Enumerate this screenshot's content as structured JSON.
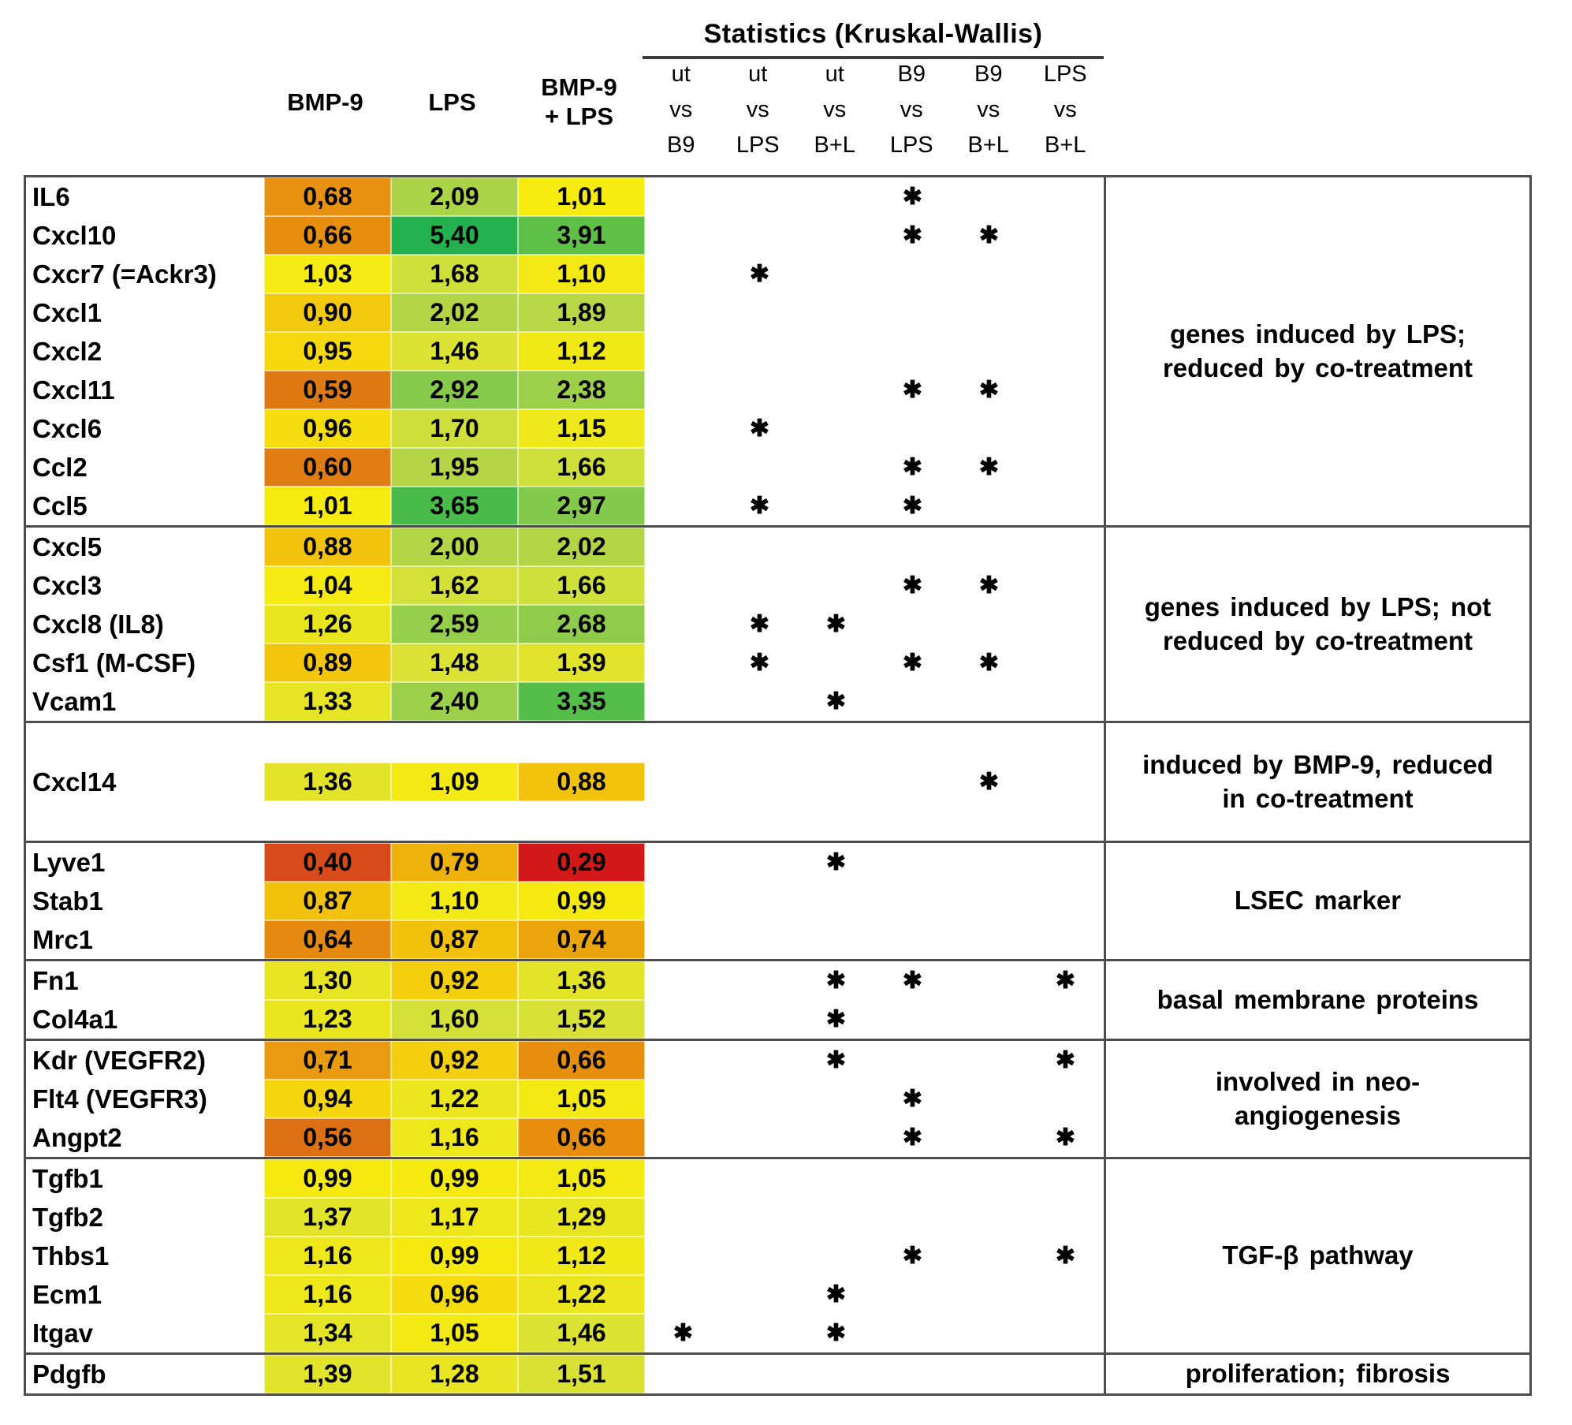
{
  "header": {
    "stats_title": "Statistics (Kruskal-Wallis)",
    "value_columns": [
      "BMP-9",
      "LPS",
      "BMP-9\n+ LPS"
    ],
    "stat_columns": [
      "ut\nvs\nB9",
      "ut\nvs\nLPS",
      "ut\nvs\nB+L",
      "B9\nvs\nLPS",
      "B9\nvs\nB+L",
      "LPS\nvs\nB+L"
    ],
    "star_symbol": "✱"
  },
  "sections": [
    {
      "annotation": "genes induced by LPS;\nreduced by co-treatment",
      "tall": false,
      "rows": [
        {
          "gene": "IL6",
          "values": [
            "0,68",
            "2,09",
            "1,01"
          ],
          "colors": [
            "#E89110",
            "#ABD348",
            "#F7EC10"
          ],
          "stars": [
            0,
            0,
            0,
            1,
            0,
            0
          ]
        },
        {
          "gene": "Cxcl10",
          "values": [
            "0,66",
            "5,40",
            "3,91"
          ],
          "colors": [
            "#E88E0E",
            "#22B14D",
            "#5FC047"
          ],
          "stars": [
            0,
            0,
            0,
            1,
            1,
            0
          ]
        },
        {
          "gene": "Cxcr7 (=Ackr3)",
          "values": [
            "1,03",
            "1,68",
            "1,10"
          ],
          "colors": [
            "#F6EB12",
            "#CFDF3C",
            "#F2E915"
          ],
          "stars": [
            0,
            1,
            0,
            0,
            0,
            0
          ]
        },
        {
          "gene": "Cxcl1",
          "values": [
            "0,90",
            "2,02",
            "1,89"
          ],
          "colors": [
            "#F3C90D",
            "#B1D545",
            "#B7D747"
          ],
          "stars": [
            0,
            0,
            0,
            0,
            0,
            0
          ]
        },
        {
          "gene": "Cxcl2",
          "values": [
            "0,95",
            "1,46",
            "1,12"
          ],
          "colors": [
            "#F5D90E",
            "#DDE332",
            "#F0E817"
          ],
          "stars": [
            0,
            0,
            0,
            0,
            0,
            0
          ]
        },
        {
          "gene": "Cxcl11",
          "values": [
            "0,59",
            "2,92",
            "2,38"
          ],
          "colors": [
            "#DF7A12",
            "#86CA4B",
            "#9DD04A"
          ],
          "stars": [
            0,
            0,
            0,
            1,
            1,
            0
          ]
        },
        {
          "gene": "Cxcl6",
          "values": [
            "0,96",
            "1,70",
            "1,15"
          ],
          "colors": [
            "#F5DC0E",
            "#CEDF3B",
            "#EFE81A"
          ],
          "stars": [
            0,
            1,
            0,
            0,
            0,
            0
          ]
        },
        {
          "gene": "Ccl2",
          "values": [
            "0,60",
            "1,95",
            "1,66"
          ],
          "colors": [
            "#E07C12",
            "#B4D646",
            "#D0E03A"
          ],
          "stars": [
            0,
            0,
            0,
            1,
            1,
            0
          ]
        },
        {
          "gene": "Ccl5",
          "values": [
            "1,01",
            "3,65",
            "2,97"
          ],
          "colors": [
            "#F7EC10",
            "#48BB4A",
            "#83C94B"
          ],
          "stars": [
            0,
            1,
            0,
            1,
            0,
            0
          ]
        }
      ]
    },
    {
      "annotation": "genes induced by LPS; not\nreduced by co-treatment",
      "tall": false,
      "rows": [
        {
          "gene": "Cxcl5",
          "values": [
            "0,88",
            "2,00",
            "2,02"
          ],
          "colors": [
            "#F2C30C",
            "#B2D546",
            "#B1D545"
          ],
          "stars": [
            0,
            0,
            0,
            0,
            0,
            0
          ]
        },
        {
          "gene": "Cxcl3",
          "values": [
            "1,04",
            "1,62",
            "1,66"
          ],
          "colors": [
            "#F5EA12",
            "#D2E038",
            "#D0E03A"
          ],
          "stars": [
            0,
            0,
            0,
            1,
            1,
            0
          ]
        },
        {
          "gene": "Cxcl8 (IL8)",
          "values": [
            "1,26",
            "2,59",
            "2,68"
          ],
          "colors": [
            "#E9E620",
            "#94CE4B",
            "#90CC4B"
          ],
          "stars": [
            0,
            1,
            1,
            0,
            0,
            0
          ]
        },
        {
          "gene": "Csf1 (M-CSF)",
          "values": [
            "0,89",
            "1,48",
            "1,39"
          ],
          "colors": [
            "#F2C60C",
            "#DCE233",
            "#E2E42C"
          ],
          "stars": [
            0,
            1,
            0,
            1,
            1,
            0
          ]
        },
        {
          "gene": "Vcam1",
          "values": [
            "1,33",
            "2,40",
            "3,35"
          ],
          "colors": [
            "#E5E526",
            "#9CD04A",
            "#55BD49"
          ],
          "stars": [
            0,
            0,
            1,
            0,
            0,
            0
          ]
        }
      ]
    },
    {
      "annotation": "induced by BMP-9, reduced\nin co-treatment",
      "tall": true,
      "rows": [
        {
          "gene": "Cxcl14",
          "values": [
            "1,36",
            "1,09",
            "0,88"
          ],
          "colors": [
            "#E3E429",
            "#F2E915",
            "#F2C30C"
          ],
          "stars": [
            0,
            0,
            0,
            0,
            1,
            0
          ]
        }
      ]
    },
    {
      "annotation": "LSEC marker",
      "tall": false,
      "rows": [
        {
          "gene": "Lyve1",
          "values": [
            "0,40",
            "0,79",
            "0,29"
          ],
          "colors": [
            "#D94A1B",
            "#EFB10C",
            "#D21818"
          ],
          "stars": [
            0,
            0,
            1,
            0,
            0,
            0
          ]
        },
        {
          "gene": "Stab1",
          "values": [
            "0,87",
            "1,10",
            "0,99"
          ],
          "colors": [
            "#F1C10C",
            "#F2E915",
            "#F6E90F"
          ],
          "stars": [
            0,
            0,
            0,
            0,
            0,
            0
          ]
        },
        {
          "gene": "Mrc1",
          "values": [
            "0,64",
            "0,87",
            "0,74"
          ],
          "colors": [
            "#E58A0F",
            "#F1C10C",
            "#ECA40D"
          ],
          "stars": [
            0,
            0,
            0,
            0,
            0,
            0
          ]
        }
      ]
    },
    {
      "annotation": "basal membrane proteins",
      "tall": false,
      "rows": [
        {
          "gene": "Fn1",
          "values": [
            "1,30",
            "0,92",
            "1,36"
          ],
          "colors": [
            "#E7E523",
            "#F4CF0D",
            "#E3E429"
          ],
          "stars": [
            0,
            0,
            1,
            1,
            0,
            1
          ]
        },
        {
          "gene": "Col4a1",
          "values": [
            "1,23",
            "1,60",
            "1,52"
          ],
          "colors": [
            "#EAE61E",
            "#D3E037",
            "#D8E135"
          ],
          "stars": [
            0,
            0,
            1,
            0,
            0,
            0
          ]
        }
      ]
    },
    {
      "annotation": "involved in neo-\nangiogenesis",
      "tall": false,
      "rows": [
        {
          "gene": "Kdr (VEGFR2)",
          "values": [
            "0,71",
            "0,92",
            "0,66"
          ],
          "colors": [
            "#EA9A0E",
            "#F4CF0D",
            "#E88E0E"
          ],
          "stars": [
            0,
            0,
            1,
            0,
            0,
            1
          ]
        },
        {
          "gene": "Flt4 (VEGFR3)",
          "values": [
            "0,94",
            "1,22",
            "1,05"
          ],
          "colors": [
            "#F5D60E",
            "#EBE61D",
            "#F4EA13"
          ],
          "stars": [
            0,
            0,
            0,
            1,
            0,
            0
          ]
        },
        {
          "gene": "Angpt2",
          "values": [
            "0,56",
            "1,16",
            "0,66"
          ],
          "colors": [
            "#DC7013",
            "#EEE81A",
            "#E88E0E"
          ],
          "stars": [
            0,
            0,
            0,
            1,
            0,
            1
          ]
        }
      ]
    },
    {
      "annotation": "TGF-β pathway",
      "tall": false,
      "rows": [
        {
          "gene": "Tgfb1",
          "values": [
            "0,99",
            "0,99",
            "1,05"
          ],
          "colors": [
            "#F6E90F",
            "#F6E90F",
            "#F4EA13"
          ],
          "stars": [
            0,
            0,
            0,
            0,
            0,
            0
          ]
        },
        {
          "gene": "Tgfb2",
          "values": [
            "1,37",
            "1,17",
            "1,29"
          ],
          "colors": [
            "#E2E42A",
            "#EEE81B",
            "#E8E621"
          ],
          "stars": [
            0,
            0,
            0,
            0,
            0,
            0
          ]
        },
        {
          "gene": "Thbs1",
          "values": [
            "1,16",
            "0,99",
            "1,12"
          ],
          "colors": [
            "#EEE81A",
            "#F6E90F",
            "#F0E817"
          ],
          "stars": [
            0,
            0,
            0,
            1,
            0,
            1
          ]
        },
        {
          "gene": "Ecm1",
          "values": [
            "1,16",
            "0,96",
            "1,22"
          ],
          "colors": [
            "#EEE81A",
            "#F5DC0E",
            "#EBE61D"
          ],
          "stars": [
            0,
            0,
            1,
            0,
            0,
            0
          ]
        },
        {
          "gene": "Itgav",
          "values": [
            "1,34",
            "1,05",
            "1,46"
          ],
          "colors": [
            "#E4E527",
            "#F4EA13",
            "#DDE332"
          ],
          "stars": [
            1,
            0,
            1,
            0,
            0,
            0
          ]
        }
      ]
    },
    {
      "annotation": "proliferation;  fibrosis",
      "tall": false,
      "rows": [
        {
          "gene": "Pdgfb",
          "values": [
            "1,39",
            "1,28",
            "1,51"
          ],
          "colors": [
            "#E2E42C",
            "#E8E622",
            "#D9E134"
          ],
          "stars": [
            0,
            0,
            0,
            0,
            0,
            0
          ]
        }
      ]
    }
  ],
  "chart_data": {
    "type": "heatmap",
    "title": "Statistics (Kruskal-Wallis)",
    "columns": [
      "BMP-9",
      "LPS",
      "BMP-9 + LPS"
    ],
    "rows": [
      "IL6",
      "Cxcl10",
      "Cxcr7 (=Ackr3)",
      "Cxcl1",
      "Cxcl2",
      "Cxcl11",
      "Cxcl6",
      "Ccl2",
      "Ccl5",
      "Cxcl5",
      "Cxcl3",
      "Cxcl8 (IL8)",
      "Csf1 (M-CSF)",
      "Vcam1",
      "Cxcl14",
      "Lyve1",
      "Stab1",
      "Mrc1",
      "Fn1",
      "Col4a1",
      "Kdr (VEGFR2)",
      "Flt4 (VEGFR3)",
      "Angpt2",
      "Tgfb1",
      "Tgfb2",
      "Thbs1",
      "Ecm1",
      "Itgav",
      "Pdgfb"
    ],
    "values": [
      [
        0.68,
        2.09,
        1.01
      ],
      [
        0.66,
        5.4,
        3.91
      ],
      [
        1.03,
        1.68,
        1.1
      ],
      [
        0.9,
        2.02,
        1.89
      ],
      [
        0.95,
        1.46,
        1.12
      ],
      [
        0.59,
        2.92,
        2.38
      ],
      [
        0.96,
        1.7,
        1.15
      ],
      [
        0.6,
        1.95,
        1.66
      ],
      [
        1.01,
        3.65,
        2.97
      ],
      [
        0.88,
        2.0,
        2.02
      ],
      [
        1.04,
        1.62,
        1.66
      ],
      [
        1.26,
        2.59,
        2.68
      ],
      [
        0.89,
        1.48,
        1.39
      ],
      [
        1.33,
        2.4,
        3.35
      ],
      [
        1.36,
        1.09,
        0.88
      ],
      [
        0.4,
        0.79,
        0.29
      ],
      [
        0.87,
        1.1,
        0.99
      ],
      [
        0.64,
        0.87,
        0.74
      ],
      [
        1.3,
        0.92,
        1.36
      ],
      [
        1.23,
        1.6,
        1.52
      ],
      [
        0.71,
        0.92,
        0.66
      ],
      [
        0.94,
        1.22,
        1.05
      ],
      [
        0.56,
        1.16,
        0.66
      ],
      [
        0.99,
        0.99,
        1.05
      ],
      [
        1.37,
        1.17,
        1.29
      ],
      [
        1.16,
        0.99,
        1.12
      ],
      [
        1.16,
        0.96,
        1.22
      ],
      [
        1.34,
        1.05,
        1.46
      ],
      [
        1.39,
        1.28,
        1.51
      ]
    ],
    "significance_columns": [
      "ut vs B9",
      "ut vs LPS",
      "ut vs B+L",
      "B9 vs LPS",
      "B9 vs B+L",
      "LPS vs B+L"
    ],
    "significance": [
      [
        0,
        0,
        0,
        1,
        0,
        0
      ],
      [
        0,
        0,
        0,
        1,
        1,
        0
      ],
      [
        0,
        1,
        0,
        0,
        0,
        0
      ],
      [
        0,
        0,
        0,
        0,
        0,
        0
      ],
      [
        0,
        0,
        0,
        0,
        0,
        0
      ],
      [
        0,
        0,
        0,
        1,
        1,
        0
      ],
      [
        0,
        1,
        0,
        0,
        0,
        0
      ],
      [
        0,
        0,
        0,
        1,
        1,
        0
      ],
      [
        0,
        1,
        0,
        1,
        0,
        0
      ],
      [
        0,
        0,
        0,
        0,
        0,
        0
      ],
      [
        0,
        0,
        0,
        1,
        1,
        0
      ],
      [
        0,
        1,
        1,
        0,
        0,
        0
      ],
      [
        0,
        1,
        0,
        1,
        1,
        0
      ],
      [
        0,
        0,
        1,
        0,
        0,
        0
      ],
      [
        0,
        0,
        0,
        0,
        1,
        0
      ],
      [
        0,
        0,
        1,
        0,
        0,
        0
      ],
      [
        0,
        0,
        0,
        0,
        0,
        0
      ],
      [
        0,
        0,
        0,
        0,
        0,
        0
      ],
      [
        0,
        0,
        1,
        1,
        0,
        1
      ],
      [
        0,
        0,
        1,
        0,
        0,
        0
      ],
      [
        0,
        0,
        1,
        0,
        0,
        1
      ],
      [
        0,
        0,
        0,
        1,
        0,
        0
      ],
      [
        0,
        0,
        0,
        1,
        0,
        1
      ],
      [
        0,
        0,
        0,
        0,
        0,
        0
      ],
      [
        0,
        0,
        0,
        0,
        0,
        0
      ],
      [
        0,
        0,
        0,
        1,
        0,
        1
      ],
      [
        0,
        0,
        1,
        0,
        0,
        0
      ],
      [
        1,
        0,
        1,
        0,
        0,
        0
      ],
      [
        0,
        0,
        0,
        0,
        0,
        0
      ]
    ],
    "row_groups": [
      {
        "label": "genes induced by LPS; reduced by co-treatment",
        "genes": [
          "IL6",
          "Cxcl10",
          "Cxcr7 (=Ackr3)",
          "Cxcl1",
          "Cxcl2",
          "Cxcl11",
          "Cxcl6",
          "Ccl2",
          "Ccl5"
        ]
      },
      {
        "label": "genes induced by LPS; not reduced by co-treatment",
        "genes": [
          "Cxcl5",
          "Cxcl3",
          "Cxcl8 (IL8)",
          "Csf1 (M-CSF)",
          "Vcam1"
        ]
      },
      {
        "label": "induced by BMP-9, reduced in co-treatment",
        "genes": [
          "Cxcl14"
        ]
      },
      {
        "label": "LSEC marker",
        "genes": [
          "Lyve1",
          "Stab1",
          "Mrc1"
        ]
      },
      {
        "label": "basal membrane proteins",
        "genes": [
          "Fn1",
          "Col4a1"
        ]
      },
      {
        "label": "involved in neo-angiogenesis",
        "genes": [
          "Kdr (VEGFR2)",
          "Flt4 (VEGFR3)",
          "Angpt2"
        ]
      },
      {
        "label": "TGF-β pathway",
        "genes": [
          "Tgfb1",
          "Tgfb2",
          "Thbs1",
          "Ecm1",
          "Itgav"
        ]
      },
      {
        "label": "proliferation; fibrosis",
        "genes": [
          "Pdgfb"
        ]
      }
    ],
    "color_scale": {
      "low": "#C00000",
      "mid": "#FFFF00",
      "high": "#00B050",
      "midpoint": 1.0
    },
    "legend_position": "none",
    "grid": false
  }
}
